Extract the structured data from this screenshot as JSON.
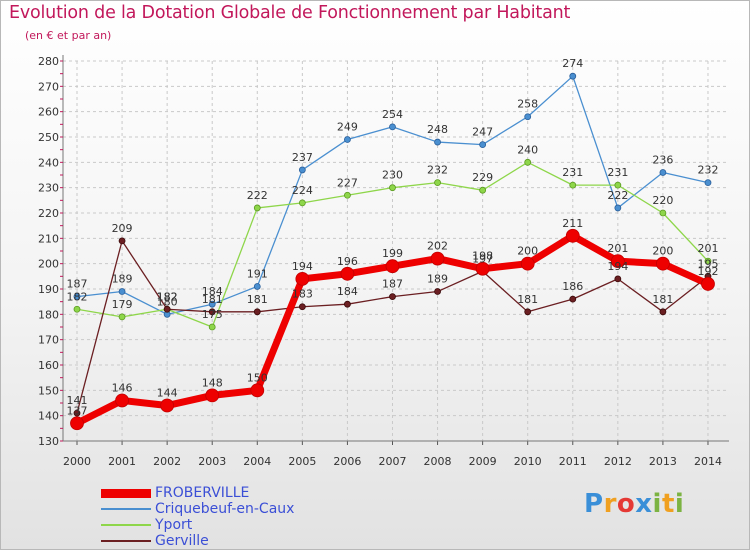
{
  "chart_data": {
    "type": "line",
    "title": "Evolution de la Dotation Globale de Fonctionnement par Habitant",
    "subtitle": "(en € et par an)",
    "xlabel": "",
    "ylabel": "",
    "ylim": [
      130,
      280
    ],
    "y_ticks": [
      130,
      140,
      150,
      160,
      170,
      180,
      190,
      200,
      210,
      220,
      230,
      240,
      250,
      260,
      270,
      280
    ],
    "categories": [
      "2000",
      "2001",
      "2002",
      "2003",
      "2004",
      "2005",
      "2006",
      "2007",
      "2008",
      "2009",
      "2010",
      "2011",
      "2012",
      "2013",
      "2014"
    ],
    "series": [
      {
        "name": "Criquebeuf-en-Caux",
        "color": "#4a8fd0",
        "values": [
          187,
          189,
          180,
          184,
          191,
          237,
          249,
          254,
          248,
          247,
          258,
          274,
          222,
          236,
          232
        ]
      },
      {
        "name": "Yport",
        "color": "#8ed64a",
        "values": [
          182,
          179,
          182,
          175,
          222,
          224,
          227,
          230,
          232,
          229,
          240,
          231,
          231,
          220,
          201
        ]
      },
      {
        "name": "Gerville",
        "color": "#6b1f22",
        "values": [
          141,
          209,
          182,
          181,
          181,
          183,
          184,
          187,
          189,
          197,
          181,
          186,
          194,
          181,
          195
        ]
      },
      {
        "name": "FROBERVILLE",
        "color": "#ee0000",
        "values": [
          137,
          146,
          144,
          148,
          150,
          194,
          196,
          199,
          202,
          198,
          200,
          211,
          201,
          200,
          192
        ]
      }
    ],
    "legend": [
      "FROBERVILLE",
      "Criquebeuf-en-Caux",
      "Yport",
      "Gerville"
    ]
  },
  "logo": {
    "letters": [
      "P",
      "r",
      "o",
      "x",
      "i",
      "t",
      "i"
    ]
  }
}
